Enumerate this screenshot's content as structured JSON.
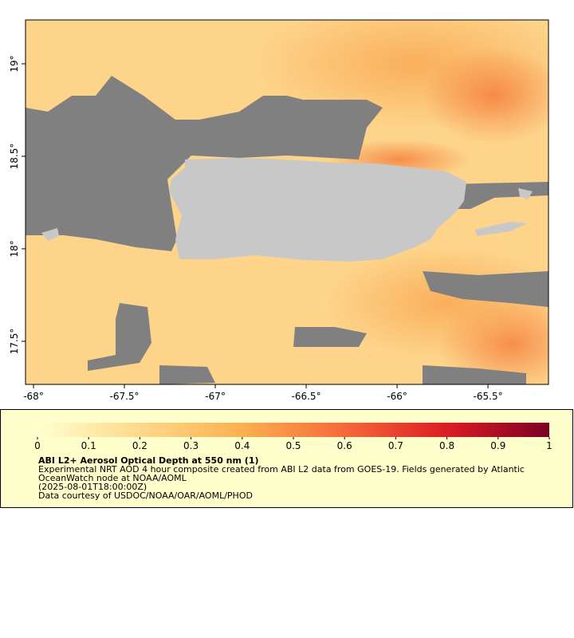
{
  "map": {
    "lonlim": [
      -68.044,
      -65.167
    ],
    "latlim": [
      17.267,
      19.237
    ],
    "xticks": [
      {
        "value": -68,
        "label": "-68°"
      },
      {
        "value": -67.5,
        "label": "-67.5°"
      },
      {
        "value": -67,
        "label": "-67°"
      },
      {
        "value": -66.5,
        "label": "-66.5°"
      },
      {
        "value": -66,
        "label": "-66°"
      },
      {
        "value": -65.5,
        "label": "-65.5°"
      }
    ],
    "yticks": [
      {
        "value": 17.5,
        "label": "17.5°"
      },
      {
        "value": 18,
        "label": "18°"
      },
      {
        "value": 18.5,
        "label": "18.5°"
      },
      {
        "value": 19,
        "label": "19°"
      }
    ]
  },
  "colorbar": {
    "lim": [
      0,
      1
    ],
    "ticks": [
      0,
      0.1,
      0.2,
      0.3,
      0.4,
      0.5,
      0.6,
      0.7,
      0.8,
      0.9,
      1
    ]
  },
  "caption": {
    "title": "ABI L2+ Aerosol Optical Depth at 550 nm (1)",
    "lines": [
      "Experimental NRT AOD 4 hour composite created from ABI L2 data from GOES-19. Fields generated by Atlantic",
      "OceanWatch node at NOAA/AOML",
      "(2025-08-01T18:00:00Z)",
      "Data courtesy of USDOC/NOAA/OAR/AOML/PHOD"
    ]
  }
}
